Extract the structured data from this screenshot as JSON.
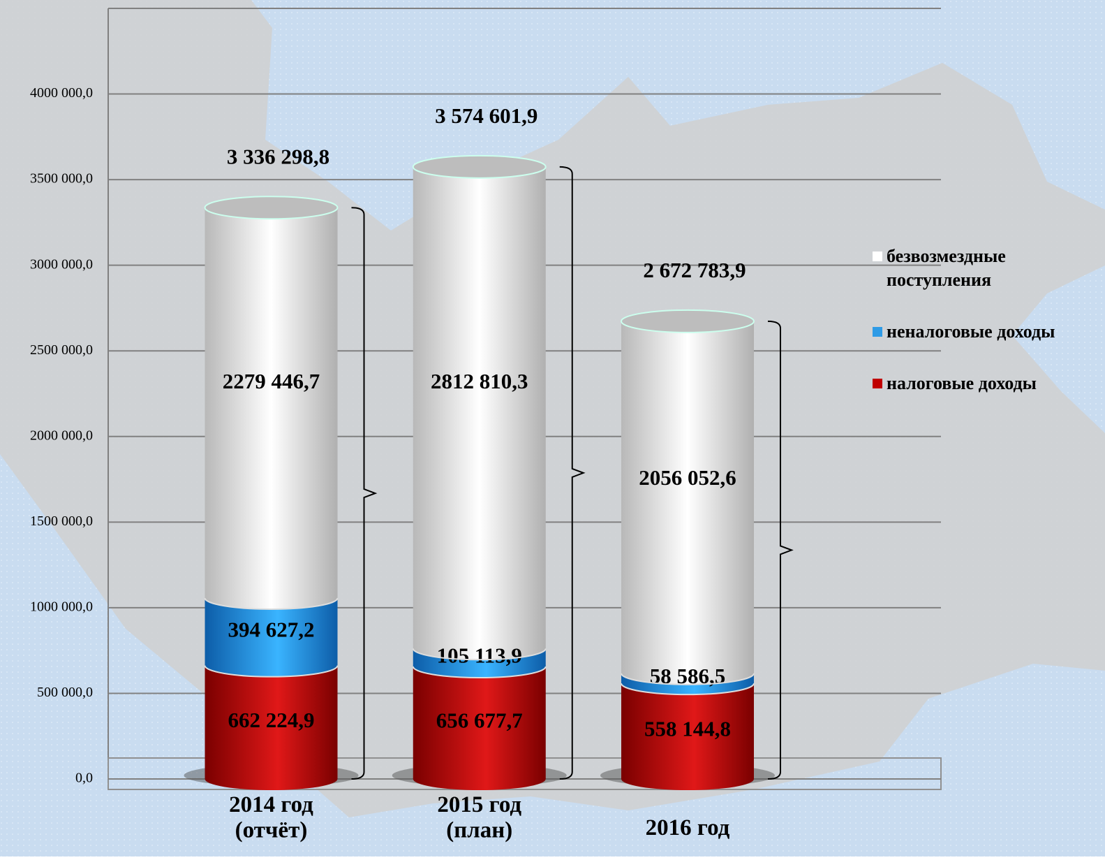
{
  "chart_data": {
    "type": "bar",
    "stacked": true,
    "categories": [
      "2014 год\n(отчёт)",
      "2015 год\n(план)",
      "2016 год"
    ],
    "series": [
      {
        "name": "налоговые доходы",
        "color": "#c00000",
        "values": [
          662224.9,
          656677.7,
          558144.8
        ],
        "value_labels": [
          "662 224,9",
          "656 677,7",
          "558 144,8"
        ]
      },
      {
        "name": "неналоговые доходы",
        "color": "#2e9be6",
        "values": [
          394627.2,
          105113.9,
          58586.5
        ],
        "value_labels": [
          "394 627,2",
          "105 113,9",
          "58 586,5"
        ]
      },
      {
        "name": "безвозмездные поступления",
        "color": "#ffffff",
        "values": [
          2279446.7,
          2812810.3,
          2056052.6
        ],
        "value_labels": [
          "2279 446,7",
          "2812 810,3",
          "2056 052,6"
        ]
      }
    ],
    "totals": {
      "values": [
        3336298.8,
        3574601.9,
        2672783.9
      ],
      "value_labels": [
        "3 336 298,8",
        "3 574 601,9",
        "2 672 783,9"
      ]
    },
    "ylim": [
      0,
      4500000
    ],
    "yticks": [
      {
        "value": 0,
        "label": "0,0"
      },
      {
        "value": 500000,
        "label": "500 000,0"
      },
      {
        "value": 1000000,
        "label": "1000 000,0"
      },
      {
        "value": 1500000,
        "label": "1500 000,0"
      },
      {
        "value": 2000000,
        "label": "2000 000,0"
      },
      {
        "value": 2500000,
        "label": "2500 000,0"
      },
      {
        "value": 3000000,
        "label": "3000 000,0"
      },
      {
        "value": 3500000,
        "label": "3500 000,0"
      },
      {
        "value": 4000000,
        "label": "4000 000,0"
      }
    ],
    "grid": true,
    "legend": "right"
  }
}
